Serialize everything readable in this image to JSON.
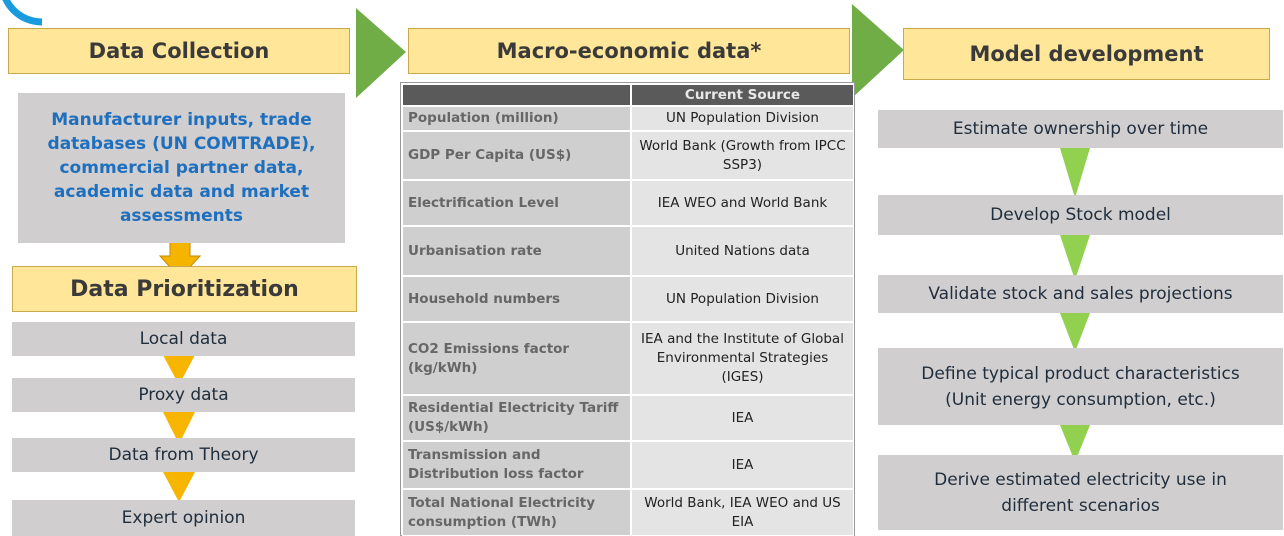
{
  "collection": {
    "title": "Data Collection",
    "text": "Manufacturer inputs, trade databases (UN COMTRADE), commercial partner data, academic data and market assessments"
  },
  "prioritization": {
    "title": "Data Prioritization",
    "steps": [
      "Local data",
      "Proxy data",
      "Data from Theory",
      "Expert opinion"
    ]
  },
  "macro": {
    "title": "Macro-economic data*",
    "table": {
      "header": "Current Source",
      "rows": [
        [
          "Population (million)",
          "UN Population Division"
        ],
        [
          "GDP Per Capita (US$)",
          "World Bank (Growth from IPCC SSP3)"
        ],
        [
          "Electrification Level",
          "IEA WEO and World Bank"
        ],
        [
          "Urbanisation rate",
          "United Nations data"
        ],
        [
          "Household numbers",
          "UN Population Division"
        ],
        [
          "CO2 Emissions factor (kg/kWh)",
          "IEA and the Institute of Global Environmental Strategies (IGES)"
        ],
        [
          "Residential Electricity Tariff (US$/kWh)",
          "IEA"
        ],
        [
          "Transmission and Distribution loss factor",
          "IEA"
        ],
        [
          "Total National Electricity consumption (TWh)",
          "World Bank, IEA WEO and US EIA"
        ]
      ]
    }
  },
  "model": {
    "title": "Model development",
    "steps": [
      "Estimate ownership over time",
      "Develop Stock model",
      "Validate stock and sales projections",
      "Define typical product characteristics (Unit energy consumption, etc.)",
      "Derive estimated electricity use in different scenarios"
    ]
  }
}
